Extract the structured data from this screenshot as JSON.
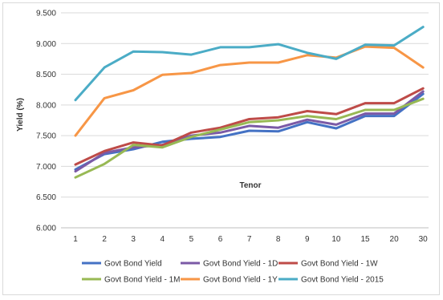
{
  "chart_data": {
    "type": "line",
    "xlabel": "Tenor",
    "ylabel": "Yield (%)",
    "ylim": [
      6.0,
      9.5
    ],
    "y_ticks": [
      "6.000",
      "6.500",
      "7.000",
      "7.500",
      "8.000",
      "8.500",
      "9.000",
      "9.500"
    ],
    "categories": [
      "1",
      "2",
      "3",
      "4",
      "5",
      "6",
      "7",
      "8",
      "9",
      "10",
      "15",
      "20",
      "30"
    ],
    "grid": "horizontal",
    "legend_position": "bottom",
    "series": [
      {
        "name": "Govt Bond Yield",
        "color": "#4472c4",
        "values": [
          6.95,
          7.2,
          7.28,
          7.4,
          7.45,
          7.48,
          7.58,
          7.57,
          7.72,
          7.62,
          7.82,
          7.82,
          8.18
        ]
      },
      {
        "name": "Govt Bond Yield - 1D",
        "color": "#7b5aa6",
        "values": [
          6.92,
          7.22,
          7.31,
          7.35,
          7.5,
          7.55,
          7.66,
          7.63,
          7.76,
          7.68,
          7.86,
          7.86,
          8.22
        ]
      },
      {
        "name": "Govt Bond Yield - 1W",
        "color": "#be4b48",
        "values": [
          7.03,
          7.25,
          7.39,
          7.34,
          7.55,
          7.63,
          7.77,
          7.8,
          7.9,
          7.85,
          8.03,
          8.03,
          8.27
        ]
      },
      {
        "name": "Govt Bond Yield - 1M",
        "color": "#98b954",
        "values": [
          6.82,
          7.04,
          7.35,
          7.31,
          7.48,
          7.6,
          7.72,
          7.75,
          7.82,
          7.77,
          7.92,
          7.92,
          8.1
        ]
      },
      {
        "name": "Govt Bond Yield - 1Y",
        "color": "#f79646",
        "values": [
          7.5,
          8.11,
          8.24,
          8.49,
          8.52,
          8.65,
          8.69,
          8.69,
          8.81,
          8.77,
          8.95,
          8.93,
          8.61
        ]
      },
      {
        "name": "Govt Bond Yield - 2015",
        "color": "#4bacc6",
        "values": [
          8.08,
          8.61,
          8.87,
          8.86,
          8.82,
          8.94,
          8.94,
          8.99,
          8.85,
          8.75,
          8.98,
          8.97,
          9.27
        ]
      }
    ]
  }
}
